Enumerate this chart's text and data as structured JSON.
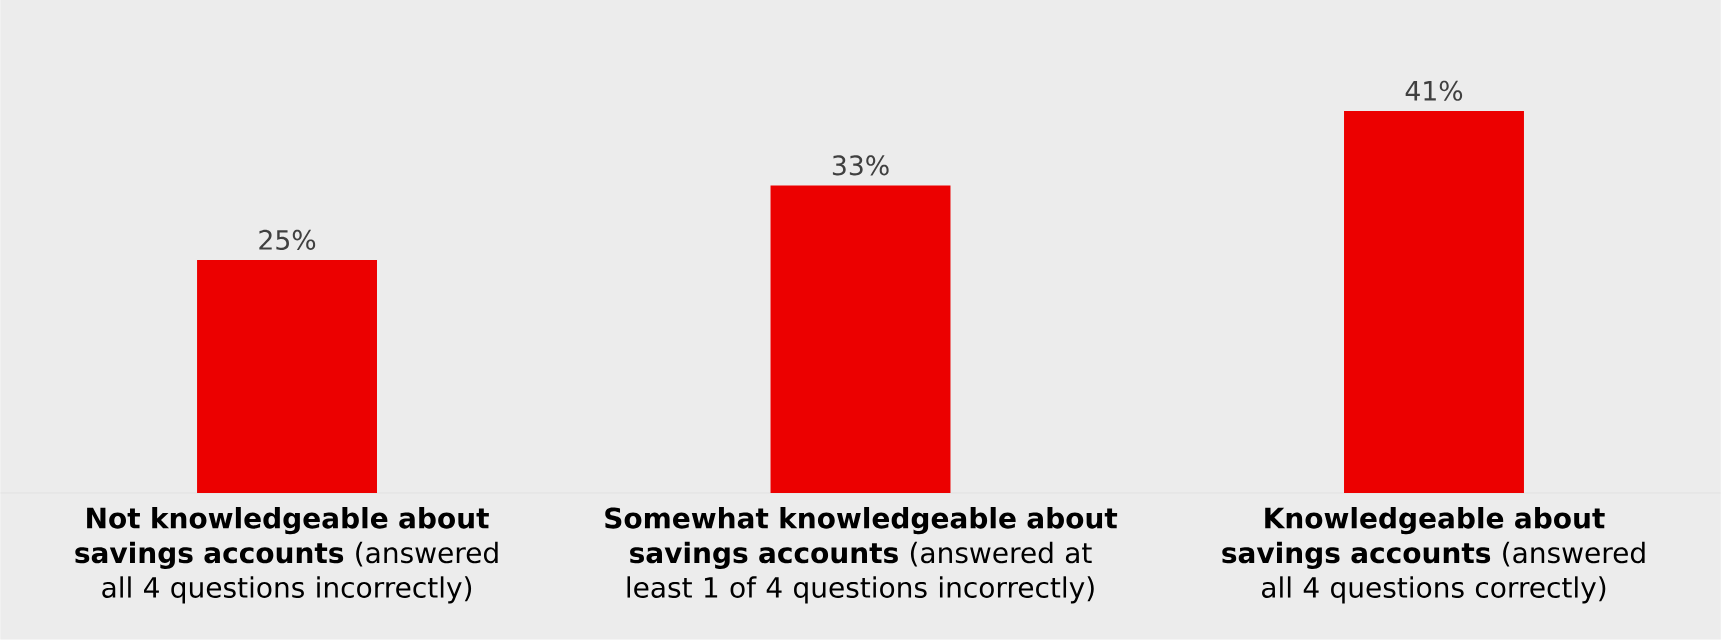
{
  "chart_data": {
    "type": "bar",
    "categories": [
      "**Not knowledgeable about savings accounts** (answered all 4 questions incorrectly)",
      "**Somewhat knowledgeable about savings accounts** (answered at least 1 of 4 questions incorrectly)",
      "**Knowledgeable about savings accounts** (answered all 4 questions correctly)"
    ],
    "values": [
      25,
      33,
      41
    ],
    "value_labels": [
      "25%",
      "33%",
      "41%"
    ],
    "color": "#ec0000",
    "tick_labels": "x"
  }
}
